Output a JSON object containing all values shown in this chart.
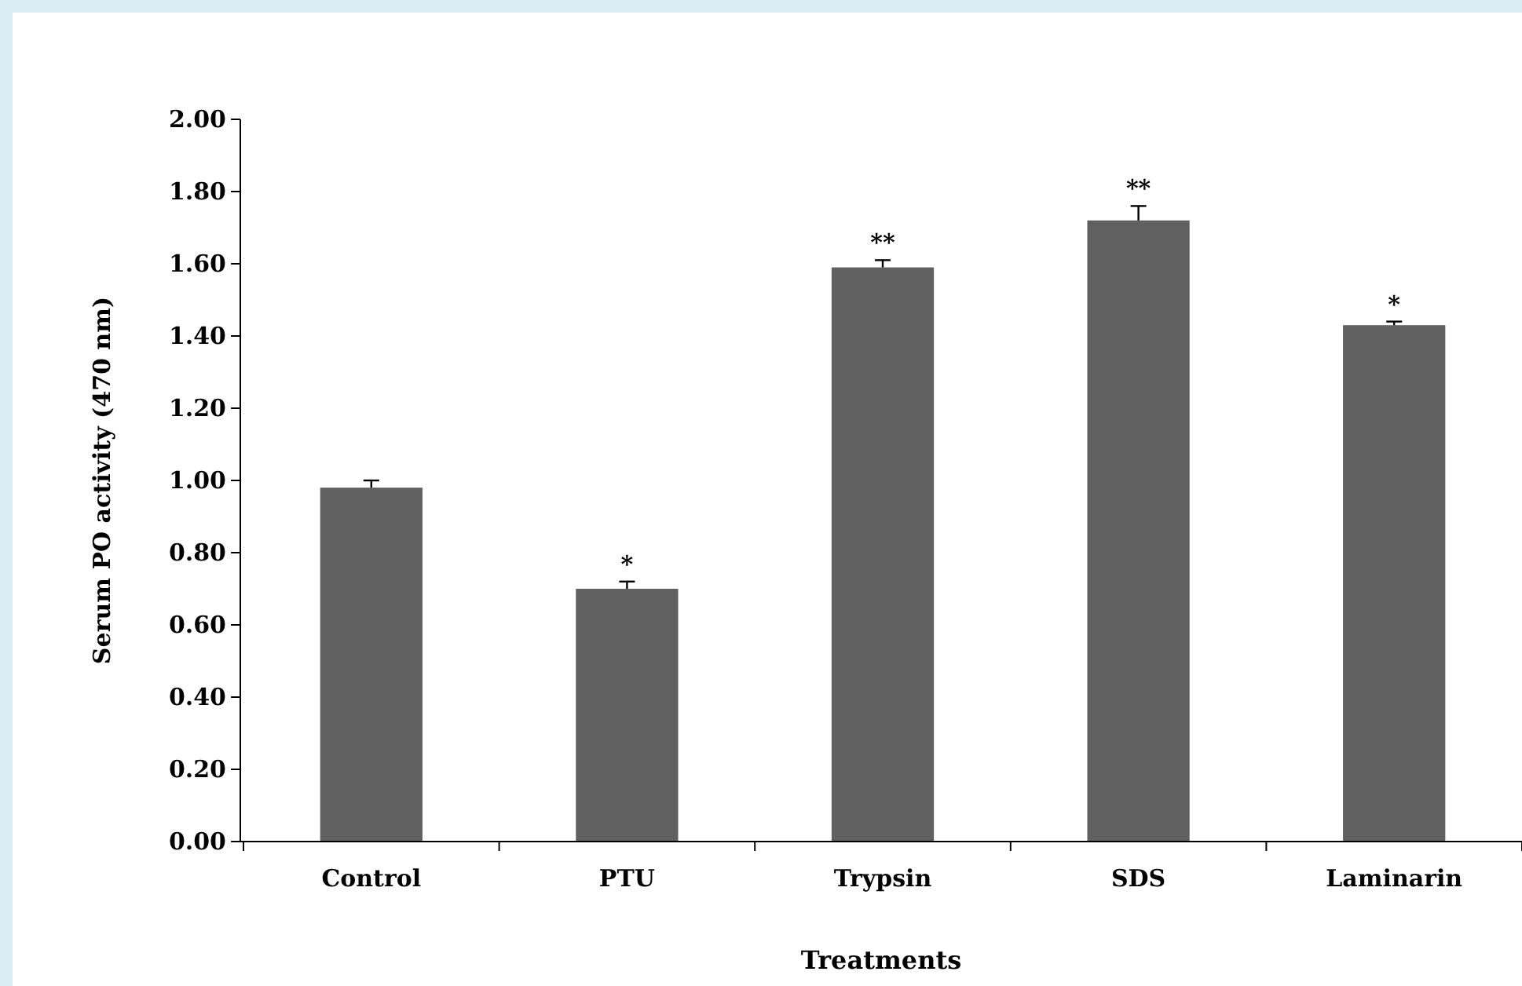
{
  "chart_data": {
    "type": "bar",
    "xlabel": "Treatments",
    "ylabel": "Serum PO activity (470 nm)",
    "categories": [
      "Control",
      "PTU",
      "Trypsin",
      "SDS",
      "Laminarin"
    ],
    "values": [
      0.98,
      0.7,
      1.59,
      1.72,
      1.43
    ],
    "errors": [
      [
        0.98,
        1.0
      ],
      [
        0.7,
        0.72
      ],
      [
        1.59,
        1.61
      ],
      [
        1.72,
        1.76
      ],
      [
        1.43,
        1.44
      ]
    ],
    "color": "#606060",
    "ylim": [
      0,
      2
    ],
    "yticks": [
      {
        "value": 0,
        "label": "0.00"
      },
      {
        "value": 0.2,
        "label": "0.20"
      },
      {
        "value": 0.4,
        "label": "0.40"
      },
      {
        "value": 0.6,
        "label": "0.60"
      },
      {
        "value": 0.8,
        "label": "0.80"
      },
      {
        "value": 1,
        "label": "1.00"
      },
      {
        "value": 1.2,
        "label": "1.20"
      },
      {
        "value": 1.4,
        "label": "1.40"
      },
      {
        "value": 1.6,
        "label": "1.60"
      },
      {
        "value": 1.8,
        "label": "1.80"
      },
      {
        "value": 2,
        "label": "2.00"
      }
    ],
    "annotations": [
      {
        "text": "*",
        "x": "PTU",
        "y": 0.72
      },
      {
        "text": "**",
        "x": "Trypsin",
        "y": 1.61
      },
      {
        "text": "**",
        "x": "SDS",
        "y": 1.76
      },
      {
        "text": "*",
        "x": "Laminarin",
        "y": 1.44
      }
    ],
    "grid": false
  }
}
